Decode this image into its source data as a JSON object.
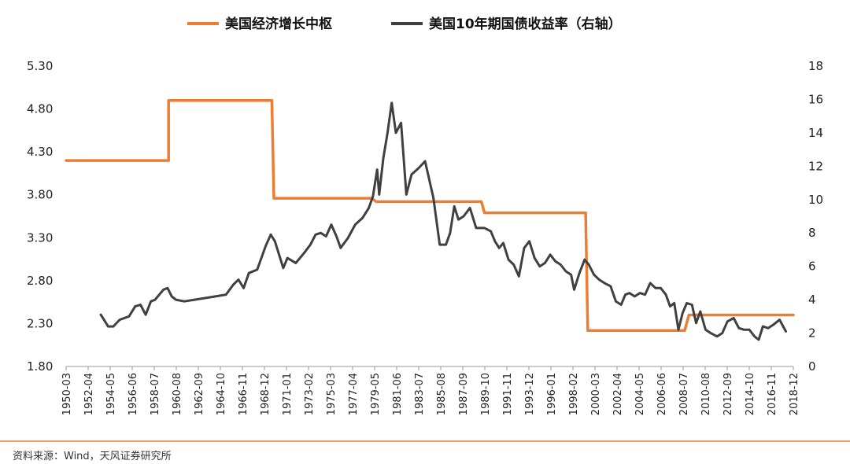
{
  "source": "资料来源：Wind，天风证券研究所",
  "colors": {
    "growth": "#ED7D31",
    "yield": "#404040",
    "divider": "#ED7D31",
    "axis": "#999999"
  },
  "chart_data": {
    "type": "line",
    "legend": [
      {
        "name": "美国经济增长中枢",
        "axis": "left",
        "color": "#ED7D31"
      },
      {
        "name": "美国10年期国债收益率（右轴）",
        "axis": "right",
        "color": "#404040"
      }
    ],
    "legend_position": "top",
    "grid": false,
    "x_type": "time",
    "xlim": [
      1950.17,
      2019.92
    ],
    "x_ticks": [
      "1950-03",
      "1952-04",
      "1954-05",
      "1956-06",
      "1958-07",
      "1960-08",
      "1962-09",
      "1964-10",
      "1966-11",
      "1968-12",
      "1971-01",
      "1973-02",
      "1975-03",
      "1977-04",
      "1979-05",
      "1981-06",
      "1983-07",
      "1985-08",
      "1987-09",
      "1989-10",
      "1991-11",
      "1993-12",
      "1996-01",
      "1998-02",
      "2000-03",
      "2002-04",
      "2004-05",
      "2006-06",
      "2008-07",
      "2010-08",
      "2012-09",
      "2014-10",
      "2016-11",
      "2018-12"
    ],
    "y_left": {
      "lim": [
        1.8,
        5.3
      ],
      "ticks": [
        "1.80",
        "2.30",
        "2.80",
        "3.30",
        "3.80",
        "4.30",
        "4.80",
        "5.30"
      ]
    },
    "y_right": {
      "lim": [
        0,
        18
      ],
      "ticks": [
        "0",
        "2",
        "4",
        "6",
        "8",
        "10",
        "12",
        "14",
        "16",
        "18"
      ]
    },
    "series": [
      {
        "name": "美国经济增长中枢",
        "axis": "left",
        "x": [
          1950.17,
          1960.0,
          1960.0,
          1969.9,
          1970.1,
          1979.5,
          1979.9,
          1990.0,
          1990.3,
          2000.0,
          2000.2,
          2009.5,
          2009.9,
          2019.92
        ],
        "y": [
          4.2,
          4.2,
          4.9,
          4.9,
          3.76,
          3.76,
          3.72,
          3.72,
          3.59,
          3.59,
          2.22,
          2.22,
          2.4,
          2.4
        ]
      },
      {
        "name": "美国10年期国债收益率（右轴）",
        "axis": "right",
        "x": [
          1953.5,
          1954.2,
          1954.7,
          1955.3,
          1956.2,
          1956.8,
          1957.3,
          1957.8,
          1958.3,
          1958.7,
          1959.5,
          1959.9,
          1960.3,
          1960.7,
          1961.5,
          1962.5,
          1963.5,
          1964.5,
          1965.5,
          1966.2,
          1966.7,
          1967.2,
          1967.7,
          1968.5,
          1969.3,
          1969.8,
          1970.2,
          1970.6,
          1971.0,
          1971.4,
          1972.2,
          1973.0,
          1973.6,
          1974.1,
          1974.6,
          1975.1,
          1975.6,
          1976.1,
          1976.5,
          1977.2,
          1977.9,
          1978.6,
          1979.2,
          1979.6,
          1980.0,
          1980.2,
          1980.6,
          1981.0,
          1981.4,
          1981.8,
          1982.3,
          1982.8,
          1983.3,
          1984.0,
          1984.6,
          1985.4,
          1986.0,
          1986.6,
          1987.0,
          1987.4,
          1987.8,
          1988.3,
          1988.9,
          1989.5,
          1990.3,
          1990.9,
          1991.3,
          1991.7,
          1992.1,
          1992.6,
          1993.1,
          1993.6,
          1994.1,
          1994.6,
          1995.1,
          1995.6,
          1996.1,
          1996.6,
          1997.1,
          1997.6,
          1998.1,
          1998.6,
          1998.9,
          1999.4,
          1999.9,
          2000.3,
          2000.8,
          2001.3,
          2001.8,
          2002.4,
          2002.9,
          2003.4,
          2003.8,
          2004.2,
          2004.7,
          2005.2,
          2005.7,
          2006.2,
          2006.7,
          2007.2,
          2007.7,
          2008.1,
          2008.5,
          2008.9,
          2009.3,
          2009.7,
          2010.2,
          2010.6,
          2011.0,
          2011.5,
          2012.0,
          2012.6,
          2013.1,
          2013.6,
          2014.2,
          2014.7,
          2015.2,
          2015.7,
          2016.2,
          2016.6,
          2017.0,
          2017.5,
          2018.0,
          2018.6,
          2019.2
        ],
        "y": [
          3.1,
          2.4,
          2.4,
          2.8,
          3.0,
          3.6,
          3.7,
          3.1,
          3.9,
          4.0,
          4.6,
          4.7,
          4.2,
          4.0,
          3.9,
          4.0,
          4.1,
          4.2,
          4.3,
          4.9,
          5.2,
          4.7,
          5.6,
          5.8,
          7.2,
          7.9,
          7.5,
          6.7,
          5.9,
          6.5,
          6.2,
          6.8,
          7.3,
          7.9,
          8.0,
          7.8,
          8.5,
          7.8,
          7.1,
          7.7,
          8.5,
          8.9,
          9.5,
          10.2,
          11.8,
          10.3,
          12.5,
          14.0,
          15.8,
          14.0,
          14.6,
          10.3,
          11.5,
          11.9,
          12.3,
          10.1,
          7.3,
          7.3,
          8.0,
          9.6,
          8.8,
          9.0,
          9.5,
          8.3,
          8.3,
          8.1,
          7.5,
          7.1,
          7.4,
          6.4,
          6.1,
          5.4,
          7.1,
          7.5,
          6.5,
          6.0,
          6.2,
          6.7,
          6.3,
          6.1,
          5.7,
          5.5,
          4.6,
          5.6,
          6.4,
          6.1,
          5.5,
          5.2,
          5.0,
          4.8,
          3.9,
          3.7,
          4.3,
          4.4,
          4.2,
          4.4,
          4.3,
          5.0,
          4.7,
          4.7,
          4.3,
          3.6,
          3.8,
          2.2,
          3.2,
          3.8,
          3.7,
          2.6,
          3.3,
          2.2,
          2.0,
          1.8,
          2.0,
          2.7,
          2.9,
          2.3,
          2.2,
          2.2,
          1.8,
          1.6,
          2.4,
          2.3,
          2.5,
          2.8,
          2.1
        ]
      }
    ]
  }
}
